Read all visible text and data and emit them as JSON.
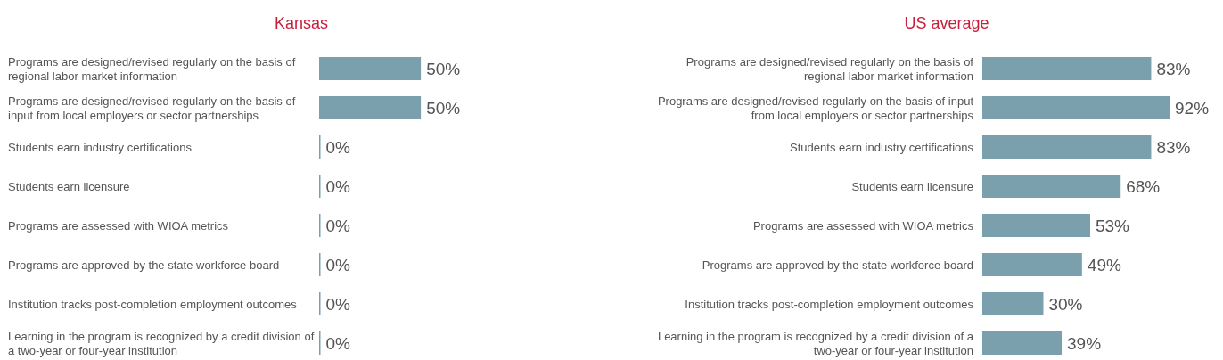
{
  "chart_data": [
    {
      "type": "bar",
      "orientation": "horizontal",
      "title": "Kansas",
      "categories": [
        "Programs are designed/revised regularly on the basis of regional labor market information",
        "Programs are designed/revised regularly on the basis of input from local employers or sector partnerships",
        "Students earn industry certifications",
        "Students earn licensure",
        "Programs are assessed with WIOA metrics",
        "Programs are approved by the state workforce board",
        "Institution tracks post-completion employment outcomes",
        "Learning in the program is recognized by a credit division of a two-year or four-year institution"
      ],
      "values": [
        50,
        50,
        0,
        0,
        0,
        0,
        0,
        0
      ],
      "value_labels": [
        "50%",
        "50%",
        "0%",
        "0%",
        "0%",
        "0%",
        "0%",
        "0%"
      ],
      "color": "#7a9fad"
    },
    {
      "type": "bar",
      "orientation": "horizontal",
      "title": "US average",
      "categories": [
        "Programs are designed/revised regularly on the basis of regional labor market information",
        "Programs are designed/revised regularly on the basis of input from local employers or sector partnerships",
        "Students earn industry certifications",
        "Students earn licensure",
        "Programs are assessed with WIOA metrics",
        "Programs are approved by the state workforce board",
        "Institution tracks post-completion employment outcomes",
        "Learning in the program is recognized by a credit division of a two-year or four-year institution"
      ],
      "values": [
        83,
        92,
        83,
        68,
        53,
        49,
        30,
        39
      ],
      "value_labels": [
        "83%",
        "92%",
        "83%",
        "68%",
        "53%",
        "49%",
        "30%",
        "39%"
      ],
      "color": "#7a9fad"
    }
  ]
}
